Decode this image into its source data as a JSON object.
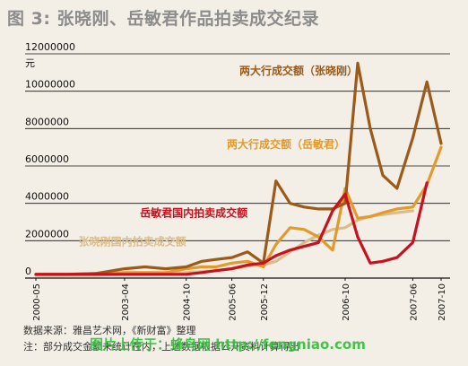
{
  "title": "图 3: 张晓刚、岳敏君作品拍卖成交纪录",
  "notes": {
    "source": "数据来源：雅昌艺术网，《新财富》整理",
    "remark": "注：部分成交金额未统计在内，上述数据根据公开资料计算得出"
  },
  "watermark": "图片上传于：蜂鸟网 http://fengniao.com",
  "colors": {
    "zhang_total": "#9b5a1a",
    "yue_total": "#e39a2c",
    "yue_domestic": "#c8101e",
    "zhang_domestic": "#d9bd8e",
    "background": "#f3efe6",
    "grid": "#111111"
  },
  "chart_data": {
    "type": "line",
    "ylabel": "元",
    "ylim": [
      0,
      12000000
    ],
    "y_ticks": [
      0,
      2000000,
      4000000,
      6000000,
      8000000,
      10000000,
      12000000
    ],
    "y_tick_labels": [
      "0",
      "2000000",
      "4000000",
      "6000000",
      "8000000",
      "10000000",
      "12000000"
    ],
    "x_tick_labels": [
      "2000-05",
      "2003-04",
      "2004-10",
      "2005-06",
      "2005-12",
      "2006-10",
      "2007-06",
      "2007-10"
    ],
    "x": [
      "2000-05",
      "2001-05",
      "2002-05",
      "2003-04",
      "2003-10",
      "2004-04",
      "2004-10",
      "2005-01",
      "2005-03",
      "2005-06",
      "2005-09",
      "2005-12",
      "2006-01",
      "2006-03",
      "2006-05",
      "2006-07",
      "2006-09",
      "2006-10",
      "2006-11",
      "2006-12",
      "2007-01",
      "2007-03",
      "2007-06",
      "2007-08",
      "2007-10"
    ],
    "series": [
      {
        "name": "两大行成交额（张晓刚）",
        "values": [
          200000,
          200000,
          250000,
          500000,
          600000,
          500000,
          600000,
          900000,
          1000000,
          1100000,
          1400000,
          800000,
          5200000,
          4000000,
          3800000,
          3700000,
          3700000,
          4000000,
          11500000,
          8000000,
          5500000,
          4800000,
          7500000,
          10500000,
          7200000
        ]
      },
      {
        "name": "两大行成交额（岳敏君）",
        "values": [
          200000,
          200000,
          250000,
          300000,
          300000,
          300000,
          500000,
          600000,
          600000,
          800000,
          900000,
          600000,
          1800000,
          2700000,
          2600000,
          2200000,
          1500000,
          4800000,
          3200000,
          3300000,
          3500000,
          3700000,
          3800000,
          5000000,
          7000000
        ]
      },
      {
        "name": "岳敏君国内拍卖成交额",
        "values": [
          200000,
          200000,
          200000,
          200000,
          200000,
          200000,
          200000,
          300000,
          400000,
          500000,
          700000,
          800000,
          1200000,
          1500000,
          1700000,
          1900000,
          3600000,
          4500000,
          2200000,
          800000,
          900000,
          1100000,
          1900000,
          5100000,
          null
        ]
      },
      {
        "name": "张晓刚国内拍卖成交额",
        "values": [
          150000,
          150000,
          150000,
          200000,
          200000,
          250000,
          300000,
          350000,
          400000,
          500000,
          650000,
          700000,
          900000,
          1400000,
          1900000,
          2300000,
          2600000,
          2700000,
          3100000,
          3300000,
          3400000,
          3500000,
          3600000,
          null,
          null
        ]
      }
    ],
    "label_anchors": [
      {
        "series": 0,
        "x": "2006-11",
        "y": 10900000
      },
      {
        "series": 1,
        "x": "2006-10",
        "y": 6950000
      },
      {
        "series": 2,
        "x": "2005-09",
        "y": 3300000
      },
      {
        "series": 3,
        "x": "2004-10",
        "y": 1750000
      }
    ],
    "grid": "horizontal",
    "legend": "inline labels"
  }
}
